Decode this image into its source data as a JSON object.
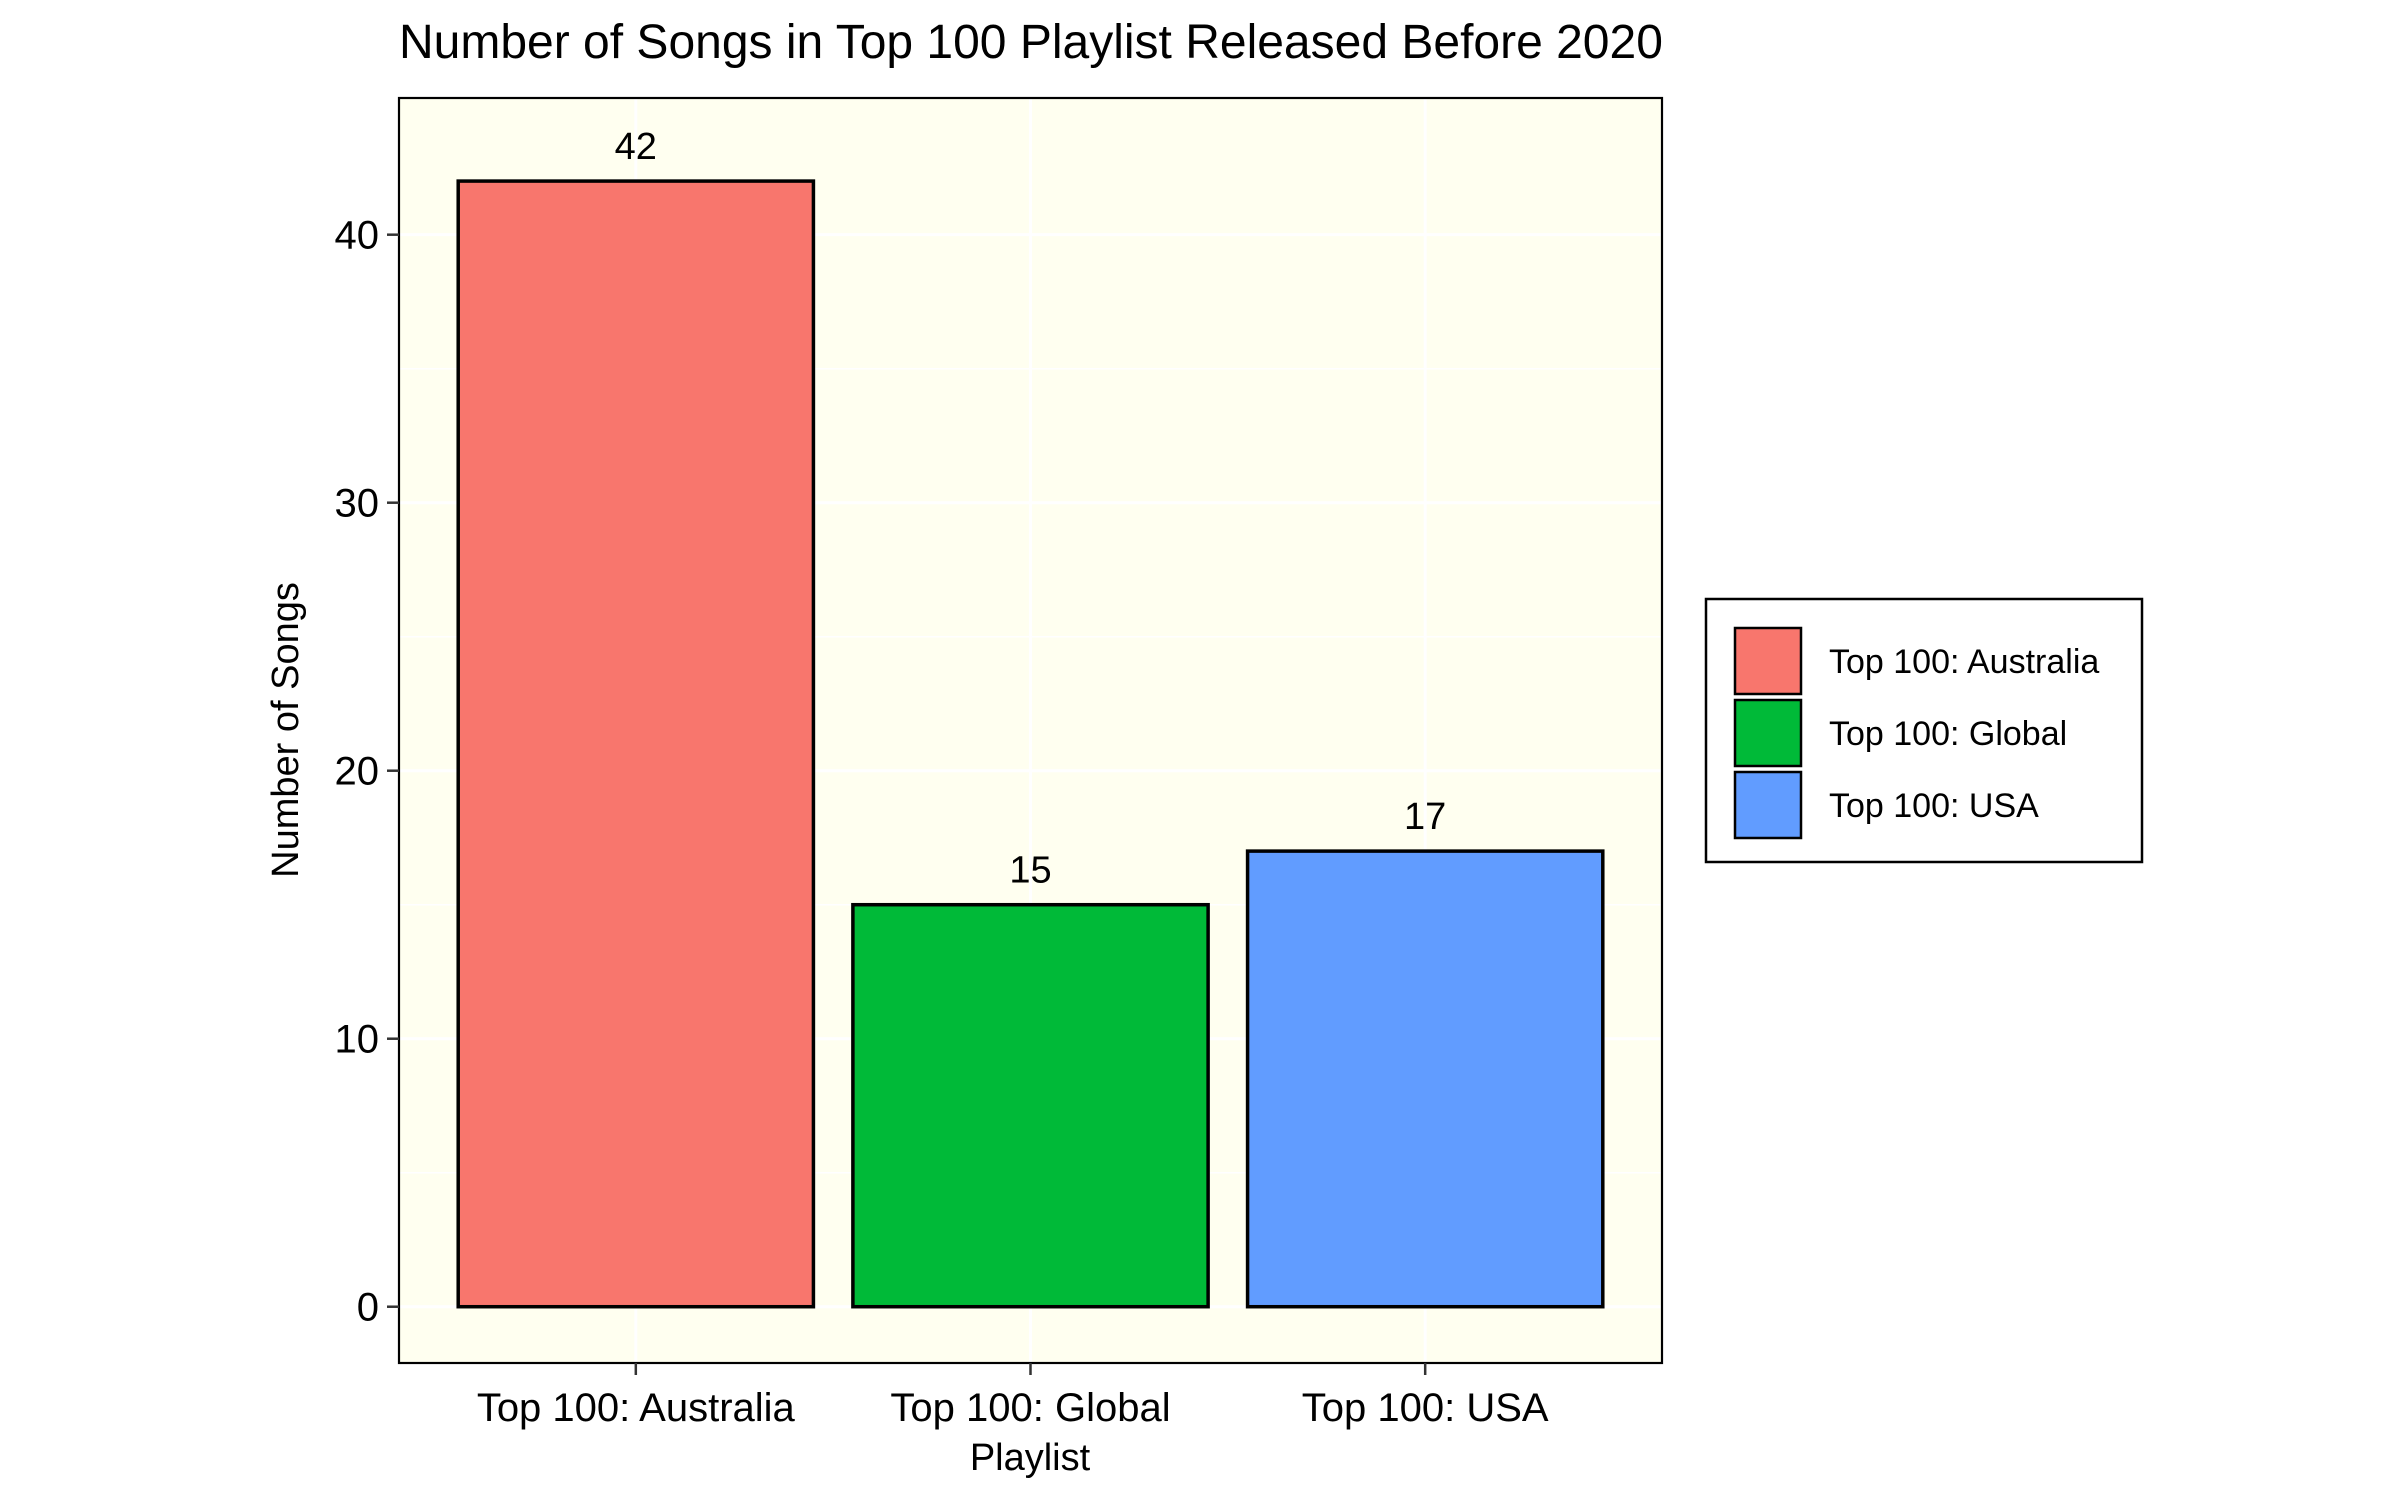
{
  "chart_data": {
    "type": "bar",
    "title": "Number of Songs in Top 100 Playlist Released Before 2020",
    "xlabel": "Playlist",
    "ylabel": "Number of Songs",
    "categories": [
      "Top 100: Australia",
      "Top 100: Global",
      "Top 100: USA"
    ],
    "values": [
      42,
      15,
      17
    ],
    "data_labels": [
      "42",
      "15",
      "17"
    ],
    "colors": [
      "#F8766D",
      "#00BA38",
      "#619CFF"
    ],
    "ylim": [
      -2.1,
      45.1
    ],
    "yticks": [
      0,
      10,
      20,
      30,
      40
    ],
    "ytick_labels": [
      "0",
      "10",
      "20",
      "30",
      "40"
    ],
    "grid": true,
    "panel_background": "#FFFFF0",
    "legend": {
      "position": "right",
      "entries": [
        "Top 100: Australia",
        "Top 100: Global",
        "Top 100: USA"
      ]
    }
  }
}
